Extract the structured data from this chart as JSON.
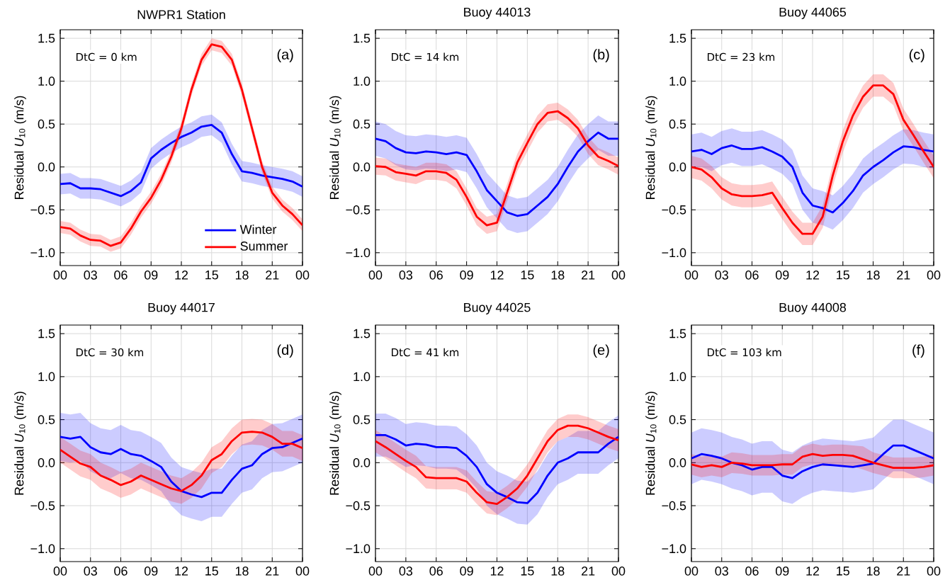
{
  "chart_data": [
    {
      "type": "line",
      "title": "NWPR1 Station",
      "ylabel": "Residual *U*$_{10}$ (m/s)",
      "annotations": [
        "DtC = 0 km",
        "(a)"
      ],
      "x": [
        0,
        1,
        2,
        3,
        4,
        5,
        6,
        7,
        8,
        9,
        10,
        11,
        12,
        13,
        14,
        15,
        16,
        17,
        18,
        19,
        20,
        21,
        22,
        23,
        24
      ],
      "series": [
        {
          "name": "Winter",
          "color": "#0000ff",
          "values": [
            -0.2,
            -0.19,
            -0.25,
            -0.25,
            -0.26,
            -0.3,
            -0.34,
            -0.28,
            -0.18,
            0.1,
            0.2,
            0.28,
            0.35,
            0.4,
            0.47,
            0.49,
            0.4,
            0.15,
            -0.05,
            -0.07,
            -0.1,
            -0.12,
            -0.14,
            -0.17,
            -0.23
          ],
          "lower": [
            -0.32,
            -0.31,
            -0.37,
            -0.37,
            -0.38,
            -0.42,
            -0.46,
            -0.4,
            -0.3,
            -0.02,
            0.08,
            0.16,
            0.23,
            0.28,
            0.35,
            0.37,
            0.28,
            0.03,
            -0.17,
            -0.19,
            -0.22,
            -0.24,
            -0.26,
            -0.29,
            -0.35
          ],
          "upper": [
            -0.08,
            -0.07,
            -0.13,
            -0.13,
            -0.14,
            -0.18,
            -0.22,
            -0.16,
            -0.06,
            0.22,
            0.32,
            0.4,
            0.47,
            0.52,
            0.59,
            0.61,
            0.52,
            0.27,
            0.07,
            0.05,
            0.02,
            0.0,
            -0.02,
            -0.05,
            -0.11
          ]
        },
        {
          "name": "Summer",
          "color": "#ff0000",
          "values": [
            -0.7,
            -0.72,
            -0.8,
            -0.85,
            -0.86,
            -0.92,
            -0.88,
            -0.72,
            -0.52,
            -0.36,
            -0.15,
            0.12,
            0.45,
            0.9,
            1.25,
            1.43,
            1.4,
            1.25,
            0.9,
            0.45,
            0.0,
            -0.3,
            -0.45,
            -0.55,
            -0.68
          ],
          "lower": [
            -0.77,
            -0.79,
            -0.87,
            -0.92,
            -0.93,
            -0.99,
            -0.95,
            -0.79,
            -0.59,
            -0.43,
            -0.22,
            0.05,
            0.38,
            0.83,
            1.18,
            1.36,
            1.33,
            1.18,
            0.83,
            0.38,
            -0.07,
            -0.37,
            -0.52,
            -0.62,
            -0.75
          ],
          "upper": [
            -0.63,
            -0.65,
            -0.73,
            -0.78,
            -0.79,
            -0.85,
            -0.81,
            -0.65,
            -0.45,
            -0.29,
            -0.08,
            0.19,
            0.52,
            0.97,
            1.32,
            1.5,
            1.47,
            1.32,
            0.97,
            0.52,
            0.07,
            -0.23,
            -0.38,
            -0.48,
            -0.61
          ]
        }
      ],
      "xlim": [
        0,
        24
      ],
      "ylim": [
        -1.15,
        1.6
      ],
      "xticks": [
        {
          "value": 0,
          "label": "00"
        },
        {
          "value": 3,
          "label": "03"
        },
        {
          "value": 6,
          "label": "06"
        },
        {
          "value": 9,
          "label": "09"
        },
        {
          "value": 12,
          "label": "12"
        },
        {
          "value": 15,
          "label": "15"
        },
        {
          "value": 18,
          "label": "18"
        },
        {
          "value": 21,
          "label": "21"
        },
        {
          "value": 24,
          "label": "00"
        }
      ],
      "yticks": [
        {
          "value": -1.0,
          "label": "−1.0"
        },
        {
          "value": -0.5,
          "label": "−0.5"
        },
        {
          "value": 0,
          "label": "0.0"
        },
        {
          "value": 0.5,
          "label": "0.5"
        },
        {
          "value": 1.0,
          "label": "1.0"
        },
        {
          "value": 1.5,
          "label": "1.5"
        }
      ],
      "grid": true,
      "marker": "none",
      "legend": "bottom right"
    },
    {
      "type": "line",
      "title": "Buoy 44013",
      "ylabel": "Residual *U*$_{10}$ (m/s)",
      "annotations": [
        "DtC = 14 km",
        "(b)"
      ],
      "x": [
        0,
        1,
        2,
        3,
        4,
        5,
        6,
        7,
        8,
        9,
        10,
        11,
        12,
        13,
        14,
        15,
        16,
        17,
        18,
        19,
        20,
        21,
        22,
        23,
        24
      ],
      "series": [
        {
          "color": "#0000ff",
          "values": [
            0.33,
            0.3,
            0.22,
            0.17,
            0.16,
            0.18,
            0.17,
            0.15,
            0.17,
            0.14,
            -0.05,
            -0.27,
            -0.4,
            -0.53,
            -0.57,
            -0.55,
            -0.45,
            -0.35,
            -0.2,
            0.0,
            0.18,
            0.3,
            0.4,
            0.33,
            0.33
          ],
          "lower": [
            0.13,
            0.1,
            0.02,
            -0.03,
            -0.04,
            -0.02,
            -0.03,
            -0.05,
            -0.03,
            -0.06,
            -0.25,
            -0.47,
            -0.6,
            -0.73,
            -0.77,
            -0.75,
            -0.65,
            -0.55,
            -0.4,
            -0.2,
            -0.02,
            0.1,
            0.2,
            0.13,
            0.13
          ],
          "upper": [
            0.53,
            0.5,
            0.42,
            0.37,
            0.36,
            0.38,
            0.37,
            0.35,
            0.37,
            0.34,
            0.15,
            -0.07,
            -0.2,
            -0.33,
            -0.37,
            -0.35,
            -0.25,
            -0.15,
            0.0,
            0.2,
            0.38,
            0.5,
            0.6,
            0.53,
            0.53
          ]
        },
        {
          "color": "#ff0000",
          "values": [
            0.01,
            0.0,
            -0.06,
            -0.08,
            -0.1,
            -0.05,
            -0.05,
            -0.07,
            -0.15,
            -0.35,
            -0.58,
            -0.68,
            -0.65,
            -0.3,
            0.05,
            0.28,
            0.5,
            0.63,
            0.65,
            0.57,
            0.45,
            0.25,
            0.12,
            0.07,
            0.01
          ],
          "lower": [
            -0.09,
            -0.1,
            -0.16,
            -0.18,
            -0.2,
            -0.15,
            -0.15,
            -0.17,
            -0.25,
            -0.45,
            -0.68,
            -0.78,
            -0.75,
            -0.4,
            -0.05,
            0.18,
            0.4,
            0.53,
            0.55,
            0.47,
            0.35,
            0.15,
            0.02,
            -0.03,
            -0.09
          ],
          "upper": [
            0.11,
            0.1,
            0.04,
            0.02,
            0.0,
            0.05,
            0.05,
            0.03,
            -0.05,
            -0.25,
            -0.48,
            -0.58,
            -0.55,
            -0.2,
            0.15,
            0.38,
            0.6,
            0.73,
            0.75,
            0.67,
            0.55,
            0.35,
            0.22,
            0.17,
            0.11
          ]
        }
      ],
      "xlim": [
        0,
        24
      ],
      "ylim": [
        -1.15,
        1.6
      ],
      "xticks": [
        {
          "value": 0,
          "label": "00"
        },
        {
          "value": 3,
          "label": "03"
        },
        {
          "value": 6,
          "label": "06"
        },
        {
          "value": 9,
          "label": "09"
        },
        {
          "value": 12,
          "label": "12"
        },
        {
          "value": 15,
          "label": "15"
        },
        {
          "value": 18,
          "label": "18"
        },
        {
          "value": 21,
          "label": "21"
        },
        {
          "value": 24,
          "label": "00"
        }
      ],
      "yticks": [
        {
          "value": -1.0,
          "label": "−1.0"
        },
        {
          "value": -0.5,
          "label": "−0.5"
        },
        {
          "value": 0,
          "label": "0.0"
        },
        {
          "value": 0.5,
          "label": "0.5"
        },
        {
          "value": 1.0,
          "label": "1.0"
        },
        {
          "value": 1.5,
          "label": "1.5"
        }
      ],
      "grid": true,
      "marker": "none"
    },
    {
      "type": "line",
      "title": "Buoy 44065",
      "ylabel": "Residual *U*$_{10}$ (m/s)",
      "annotations": [
        "DtC = 23 km",
        "(c)"
      ],
      "x": [
        0,
        1,
        2,
        3,
        4,
        5,
        6,
        7,
        8,
        9,
        10,
        11,
        12,
        13,
        14,
        15,
        16,
        17,
        18,
        19,
        20,
        21,
        22,
        23,
        24
      ],
      "series": [
        {
          "color": "#0000ff",
          "values": [
            0.18,
            0.2,
            0.15,
            0.22,
            0.25,
            0.21,
            0.21,
            0.23,
            0.18,
            0.12,
            0.0,
            -0.3,
            -0.45,
            -0.48,
            -0.53,
            -0.42,
            -0.28,
            -0.1,
            0.0,
            0.08,
            0.17,
            0.24,
            0.23,
            0.2,
            0.18
          ],
          "lower": [
            -0.02,
            0.0,
            -0.05,
            0.02,
            0.05,
            0.01,
            0.01,
            0.03,
            -0.02,
            -0.08,
            -0.2,
            -0.5,
            -0.65,
            -0.68,
            -0.73,
            -0.62,
            -0.48,
            -0.3,
            -0.2,
            -0.12,
            -0.03,
            0.04,
            0.03,
            0.0,
            -0.02
          ],
          "upper": [
            0.38,
            0.4,
            0.35,
            0.42,
            0.45,
            0.41,
            0.41,
            0.43,
            0.38,
            0.32,
            0.2,
            -0.1,
            -0.25,
            -0.28,
            -0.33,
            -0.22,
            -0.08,
            0.1,
            0.2,
            0.28,
            0.37,
            0.44,
            0.43,
            0.4,
            0.38
          ]
        },
        {
          "color": "#ff0000",
          "values": [
            0.0,
            -0.03,
            -0.12,
            -0.25,
            -0.32,
            -0.34,
            -0.34,
            -0.33,
            -0.3,
            -0.48,
            -0.65,
            -0.78,
            -0.78,
            -0.58,
            -0.1,
            0.3,
            0.6,
            0.82,
            0.95,
            0.95,
            0.85,
            0.55,
            0.37,
            0.18,
            0.0
          ],
          "lower": [
            -0.13,
            -0.16,
            -0.25,
            -0.38,
            -0.45,
            -0.47,
            -0.47,
            -0.46,
            -0.43,
            -0.61,
            -0.78,
            -0.91,
            -0.91,
            -0.71,
            -0.23,
            0.17,
            0.47,
            0.69,
            0.82,
            0.82,
            0.72,
            0.42,
            0.24,
            0.05,
            -0.13
          ],
          "upper": [
            0.13,
            0.1,
            0.01,
            -0.12,
            -0.19,
            -0.21,
            -0.21,
            -0.2,
            -0.17,
            -0.35,
            -0.52,
            -0.65,
            -0.65,
            -0.45,
            0.03,
            0.43,
            0.73,
            0.95,
            1.08,
            1.08,
            0.98,
            0.68,
            0.5,
            0.31,
            0.13
          ]
        }
      ],
      "xlim": [
        0,
        24
      ],
      "ylim": [
        -1.15,
        1.6
      ],
      "xticks": [
        {
          "value": 0,
          "label": "00"
        },
        {
          "value": 3,
          "label": "03"
        },
        {
          "value": 6,
          "label": "06"
        },
        {
          "value": 9,
          "label": "09"
        },
        {
          "value": 12,
          "label": "12"
        },
        {
          "value": 15,
          "label": "15"
        },
        {
          "value": 18,
          "label": "18"
        },
        {
          "value": 21,
          "label": "21"
        },
        {
          "value": 24,
          "label": "00"
        }
      ],
      "yticks": [
        {
          "value": -1.0,
          "label": "−1.0"
        },
        {
          "value": -0.5,
          "label": "−0.5"
        },
        {
          "value": 0,
          "label": "0.0"
        },
        {
          "value": 0.5,
          "label": "0.5"
        },
        {
          "value": 1.0,
          "label": "1.0"
        },
        {
          "value": 1.5,
          "label": "1.5"
        }
      ],
      "grid": true,
      "marker": "none"
    },
    {
      "type": "line",
      "title": "Buoy 44017",
      "ylabel": "Residual *U*$_{10}$ (m/s)",
      "annotations": [
        "DtC = 30 km",
        "(d)"
      ],
      "x": [
        0,
        1,
        2,
        3,
        4,
        5,
        6,
        7,
        8,
        9,
        10,
        11,
        12,
        13,
        14,
        15,
        16,
        17,
        18,
        19,
        20,
        21,
        22,
        23,
        24
      ],
      "series": [
        {
          "color": "#0000ff",
          "values": [
            0.3,
            0.28,
            0.3,
            0.18,
            0.12,
            0.1,
            0.16,
            0.1,
            0.08,
            0.02,
            -0.05,
            -0.22,
            -0.33,
            -0.37,
            -0.4,
            -0.35,
            -0.35,
            -0.2,
            -0.07,
            -0.03,
            0.1,
            0.17,
            0.18,
            0.23,
            0.28
          ],
          "lower": [
            0.02,
            0.0,
            0.02,
            -0.1,
            -0.16,
            -0.18,
            -0.12,
            -0.18,
            -0.2,
            -0.26,
            -0.33,
            -0.5,
            -0.61,
            -0.65,
            -0.68,
            -0.63,
            -0.63,
            -0.48,
            -0.35,
            -0.31,
            -0.18,
            -0.11,
            -0.1,
            -0.05,
            0.0
          ],
          "upper": [
            0.58,
            0.56,
            0.58,
            0.46,
            0.4,
            0.38,
            0.44,
            0.38,
            0.36,
            0.3,
            0.23,
            0.06,
            -0.05,
            -0.09,
            -0.12,
            -0.07,
            -0.07,
            0.08,
            0.21,
            0.25,
            0.38,
            0.45,
            0.46,
            0.51,
            0.56
          ]
        },
        {
          "color": "#ff0000",
          "values": [
            0.15,
            0.07,
            -0.01,
            -0.05,
            -0.15,
            -0.2,
            -0.26,
            -0.22,
            -0.15,
            -0.2,
            -0.25,
            -0.3,
            -0.33,
            -0.26,
            -0.15,
            0.03,
            0.1,
            0.25,
            0.35,
            0.36,
            0.35,
            0.3,
            0.22,
            0.22,
            0.17
          ],
          "lower": [
            0.0,
            -0.08,
            -0.16,
            -0.2,
            -0.3,
            -0.35,
            -0.41,
            -0.37,
            -0.3,
            -0.35,
            -0.4,
            -0.45,
            -0.48,
            -0.41,
            -0.3,
            -0.12,
            -0.05,
            0.1,
            0.2,
            0.21,
            0.2,
            0.15,
            0.07,
            0.07,
            0.02
          ],
          "upper": [
            0.3,
            0.22,
            0.14,
            0.1,
            0.0,
            -0.05,
            -0.11,
            -0.07,
            0.0,
            -0.05,
            -0.1,
            -0.15,
            -0.18,
            -0.11,
            0.0,
            0.18,
            0.25,
            0.4,
            0.5,
            0.51,
            0.5,
            0.45,
            0.37,
            0.37,
            0.32
          ]
        }
      ],
      "xlim": [
        0,
        24
      ],
      "ylim": [
        -1.15,
        1.6
      ],
      "xticks": [
        {
          "value": 0,
          "label": "00"
        },
        {
          "value": 3,
          "label": "03"
        },
        {
          "value": 6,
          "label": "06"
        },
        {
          "value": 9,
          "label": "09"
        },
        {
          "value": 12,
          "label": "12"
        },
        {
          "value": 15,
          "label": "15"
        },
        {
          "value": 18,
          "label": "18"
        },
        {
          "value": 21,
          "label": "21"
        },
        {
          "value": 24,
          "label": "00"
        }
      ],
      "yticks": [
        {
          "value": -1.0,
          "label": "−1.0"
        },
        {
          "value": -0.5,
          "label": "−0.5"
        },
        {
          "value": 0,
          "label": "0.0"
        },
        {
          "value": 0.5,
          "label": "0.5"
        },
        {
          "value": 1.0,
          "label": "1.0"
        },
        {
          "value": 1.5,
          "label": "1.5"
        }
      ],
      "grid": true,
      "marker": "none"
    },
    {
      "type": "line",
      "title": "Buoy 44025",
      "ylabel": "Residual *U*$_{10}$ (m/s)",
      "annotations": [
        "DtC = 41 km",
        "(e)"
      ],
      "x": [
        0,
        1,
        2,
        3,
        4,
        5,
        6,
        7,
        8,
        9,
        10,
        11,
        12,
        13,
        14,
        15,
        16,
        17,
        18,
        19,
        20,
        21,
        22,
        23,
        24
      ],
      "series": [
        {
          "color": "#0000ff",
          "values": [
            0.32,
            0.32,
            0.27,
            0.2,
            0.22,
            0.21,
            0.18,
            0.18,
            0.17,
            0.08,
            -0.05,
            -0.25,
            -0.35,
            -0.4,
            -0.46,
            -0.47,
            -0.35,
            -0.15,
            0.0,
            0.05,
            0.12,
            0.12,
            0.12,
            0.22,
            0.3
          ],
          "lower": [
            0.07,
            0.07,
            0.02,
            -0.05,
            -0.03,
            -0.04,
            -0.07,
            -0.07,
            -0.08,
            -0.17,
            -0.3,
            -0.5,
            -0.6,
            -0.65,
            -0.71,
            -0.72,
            -0.6,
            -0.4,
            -0.25,
            -0.2,
            -0.13,
            -0.13,
            -0.13,
            -0.03,
            0.05
          ],
          "upper": [
            0.57,
            0.57,
            0.52,
            0.45,
            0.47,
            0.46,
            0.43,
            0.43,
            0.42,
            0.33,
            0.2,
            0.0,
            -0.1,
            -0.15,
            -0.21,
            -0.22,
            -0.1,
            0.1,
            0.25,
            0.3,
            0.37,
            0.37,
            0.37,
            0.47,
            0.55
          ]
        },
        {
          "color": "#ff0000",
          "values": [
            0.25,
            0.18,
            0.1,
            0.02,
            -0.05,
            -0.17,
            -0.18,
            -0.18,
            -0.18,
            -0.22,
            -0.35,
            -0.46,
            -0.48,
            -0.4,
            -0.3,
            -0.15,
            0.05,
            0.25,
            0.38,
            0.43,
            0.43,
            0.4,
            0.35,
            0.3,
            0.26
          ],
          "lower": [
            0.12,
            0.05,
            -0.03,
            -0.11,
            -0.18,
            -0.3,
            -0.31,
            -0.31,
            -0.31,
            -0.35,
            -0.48,
            -0.59,
            -0.61,
            -0.53,
            -0.43,
            -0.28,
            -0.08,
            0.12,
            0.25,
            0.3,
            0.3,
            0.27,
            0.22,
            0.17,
            0.13
          ],
          "upper": [
            0.38,
            0.31,
            0.23,
            0.15,
            0.08,
            -0.04,
            -0.05,
            -0.05,
            -0.05,
            -0.09,
            -0.22,
            -0.33,
            -0.35,
            -0.27,
            -0.17,
            -0.02,
            0.18,
            0.38,
            0.51,
            0.56,
            0.56,
            0.53,
            0.48,
            0.43,
            0.39
          ]
        }
      ],
      "xlim": [
        0,
        24
      ],
      "ylim": [
        -1.15,
        1.6
      ],
      "xticks": [
        {
          "value": 0,
          "label": "00"
        },
        {
          "value": 3,
          "label": "03"
        },
        {
          "value": 6,
          "label": "06"
        },
        {
          "value": 9,
          "label": "09"
        },
        {
          "value": 12,
          "label": "12"
        },
        {
          "value": 15,
          "label": "15"
        },
        {
          "value": 18,
          "label": "18"
        },
        {
          "value": 21,
          "label": "21"
        },
        {
          "value": 24,
          "label": "00"
        }
      ],
      "yticks": [
        {
          "value": -1.0,
          "label": "−1.0"
        },
        {
          "value": -0.5,
          "label": "−0.5"
        },
        {
          "value": 0,
          "label": "0.0"
        },
        {
          "value": 0.5,
          "label": "0.5"
        },
        {
          "value": 1.0,
          "label": "1.0"
        },
        {
          "value": 1.5,
          "label": "1.5"
        }
      ],
      "grid": true,
      "marker": "none"
    },
    {
      "type": "line",
      "title": "Buoy 44008",
      "ylabel": "Residual *U*$_{10}$ (m/s)",
      "annotations": [
        "DtC = 103 km",
        "(f)"
      ],
      "x": [
        0,
        1,
        2,
        3,
        4,
        5,
        6,
        7,
        8,
        9,
        10,
        11,
        12,
        13,
        14,
        15,
        16,
        17,
        18,
        19,
        20,
        21,
        22,
        23,
        24
      ],
      "series": [
        {
          "color": "#0000ff",
          "values": [
            0.05,
            0.1,
            0.08,
            0.05,
            0.0,
            -0.03,
            -0.08,
            -0.05,
            -0.05,
            -0.15,
            -0.18,
            -0.1,
            -0.05,
            -0.02,
            -0.03,
            -0.04,
            -0.05,
            -0.03,
            -0.01,
            0.1,
            0.2,
            0.2,
            0.15,
            0.1,
            0.05
          ],
          "lower": [
            -0.25,
            -0.2,
            -0.22,
            -0.25,
            -0.3,
            -0.33,
            -0.38,
            -0.35,
            -0.35,
            -0.45,
            -0.48,
            -0.4,
            -0.35,
            -0.32,
            -0.33,
            -0.34,
            -0.35,
            -0.33,
            -0.31,
            -0.2,
            -0.1,
            -0.1,
            -0.15,
            -0.2,
            -0.25
          ],
          "upper": [
            0.35,
            0.4,
            0.38,
            0.35,
            0.3,
            0.27,
            0.22,
            0.25,
            0.25,
            0.15,
            0.12,
            0.2,
            0.25,
            0.28,
            0.27,
            0.26,
            0.25,
            0.27,
            0.29,
            0.4,
            0.5,
            0.5,
            0.45,
            0.4,
            0.35
          ]
        },
        {
          "color": "#ff0000",
          "values": [
            -0.02,
            -0.05,
            -0.03,
            -0.05,
            0.0,
            -0.01,
            -0.03,
            -0.03,
            -0.03,
            -0.02,
            -0.02,
            0.07,
            0.1,
            0.08,
            0.09,
            0.09,
            0.08,
            0.04,
            0.0,
            -0.03,
            -0.06,
            -0.06,
            -0.06,
            -0.05,
            -0.03
          ],
          "lower": [
            -0.14,
            -0.17,
            -0.15,
            -0.17,
            -0.12,
            -0.13,
            -0.15,
            -0.15,
            -0.15,
            -0.14,
            -0.14,
            -0.05,
            -0.02,
            -0.04,
            -0.03,
            -0.03,
            -0.04,
            -0.08,
            -0.12,
            -0.15,
            -0.18,
            -0.18,
            -0.18,
            -0.17,
            -0.15
          ],
          "upper": [
            0.1,
            0.07,
            0.09,
            0.07,
            0.12,
            0.11,
            0.09,
            0.09,
            0.09,
            0.1,
            0.1,
            0.19,
            0.22,
            0.2,
            0.21,
            0.21,
            0.2,
            0.19,
            0.12,
            0.09,
            0.06,
            0.06,
            0.06,
            0.07,
            0.09
          ]
        }
      ],
      "xlim": [
        0,
        24
      ],
      "ylim": [
        -1.15,
        1.6
      ],
      "xticks": [
        {
          "value": 0,
          "label": "00"
        },
        {
          "value": 3,
          "label": "03"
        },
        {
          "value": 6,
          "label": "06"
        },
        {
          "value": 9,
          "label": "09"
        },
        {
          "value": 12,
          "label": "12"
        },
        {
          "value": 15,
          "label": "15"
        },
        {
          "value": 18,
          "label": "18"
        },
        {
          "value": 21,
          "label": "21"
        },
        {
          "value": 24,
          "label": "00"
        }
      ],
      "yticks": [
        {
          "value": -1.0,
          "label": "−1.0"
        },
        {
          "value": -0.5,
          "label": "−0.5"
        },
        {
          "value": 0,
          "label": "0.0"
        },
        {
          "value": 0.5,
          "label": "0.5"
        },
        {
          "value": 1.0,
          "label": "1.0"
        },
        {
          "value": 1.5,
          "label": "1.5"
        }
      ],
      "grid": true,
      "marker": "none"
    }
  ]
}
